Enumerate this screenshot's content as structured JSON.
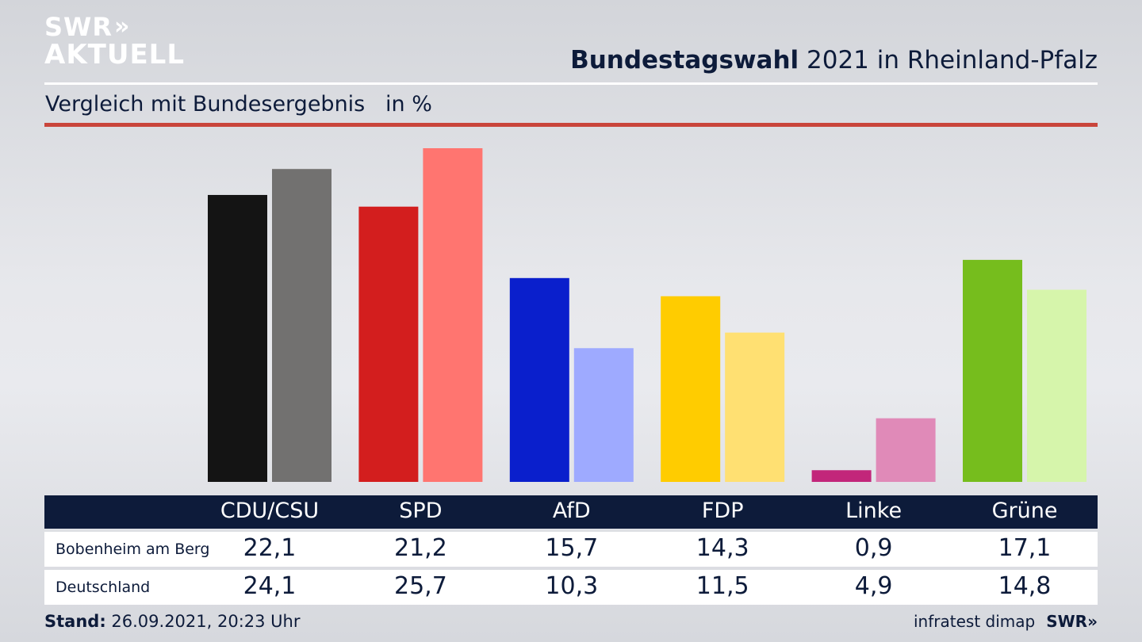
{
  "header": {
    "logo_line1": "SWR",
    "logo_chevrons": "»",
    "logo_line2": "AKTUELL",
    "title_bold": "Bundestagswahl",
    "title_rest": " 2021 in Rheinland-Pfalz",
    "subtitle": "Vergleich mit Bundesergebnis   in %"
  },
  "chart_data": {
    "type": "bar",
    "categories": [
      "CDU/CSU",
      "SPD",
      "AfD",
      "FDP",
      "Linke",
      "Grüne"
    ],
    "series": [
      {
        "name": "Bobenheim am Berg",
        "values": [
          22.1,
          21.2,
          15.7,
          14.3,
          0.9,
          17.1
        ],
        "labels": [
          "22,1",
          "21,2",
          "15,7",
          "14,3",
          "0,9",
          "17,1"
        ],
        "colors": [
          "#141414",
          "#d31e1e",
          "#0a1fcc",
          "#ffcc00",
          "#c2267a",
          "#76bd1d"
        ]
      },
      {
        "name": "Deutschland",
        "values": [
          24.1,
          25.7,
          10.3,
          11.5,
          4.9,
          14.8
        ],
        "labels": [
          "24,1",
          "25,7",
          "10,3",
          "11,5",
          "4,9",
          "14,8"
        ],
        "colors": [
          "#727170",
          "#ff7570",
          "#9eaaff",
          "#ffe072",
          "#e08ab8",
          "#d6f5ab"
        ]
      }
    ],
    "ylim": [
      0,
      25.7
    ],
    "grid": false,
    "legend": "table-below"
  },
  "footer": {
    "stand_label": "Stand:",
    "stand_value": " 26.09.2021, 20:23 Uhr",
    "source": "infratest dimap",
    "brand": "SWR»"
  },
  "colors": {
    "navy": "#0d1b3a",
    "accent_red": "#c9453b"
  }
}
